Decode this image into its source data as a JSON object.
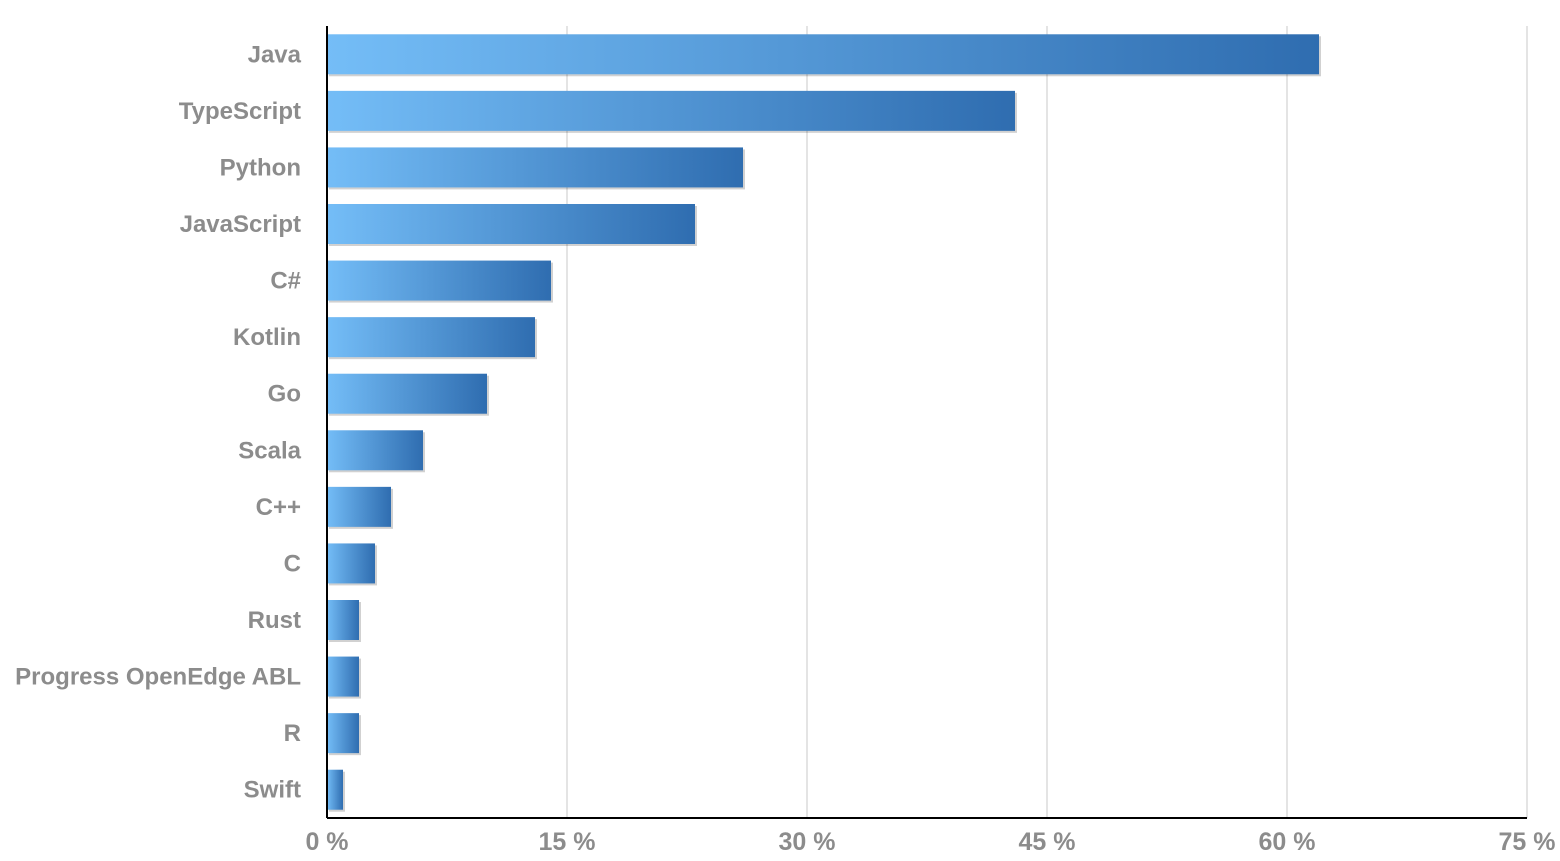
{
  "chart_data": {
    "type": "bar",
    "orientation": "horizontal",
    "categories": [
      "Java",
      "TypeScript",
      "Python",
      "JavaScript",
      "C#",
      "Kotlin",
      "Go",
      "Scala",
      "C++",
      "C",
      "Rust",
      "Progress OpenEdge ABL",
      "R",
      "Swift"
    ],
    "values": [
      62,
      43,
      26,
      23,
      14,
      13,
      10,
      6,
      4,
      3,
      2,
      2,
      2,
      1
    ],
    "xlim": [
      0,
      75
    ],
    "xticks": [
      0,
      15,
      30,
      45,
      60,
      75
    ],
    "xtick_labels": [
      "0 %",
      "15 %",
      "30 %",
      "45 %",
      "60 %",
      "75 %"
    ],
    "title": "",
    "xlabel": "",
    "ylabel": "",
    "grid": "vertical",
    "legend": "none",
    "colors": {
      "bar_start": "#74bdf7",
      "bar_end": "#2f6db0",
      "grid": "#c8c8c8",
      "axis": "#000000",
      "label": "#8c8c8c"
    }
  }
}
